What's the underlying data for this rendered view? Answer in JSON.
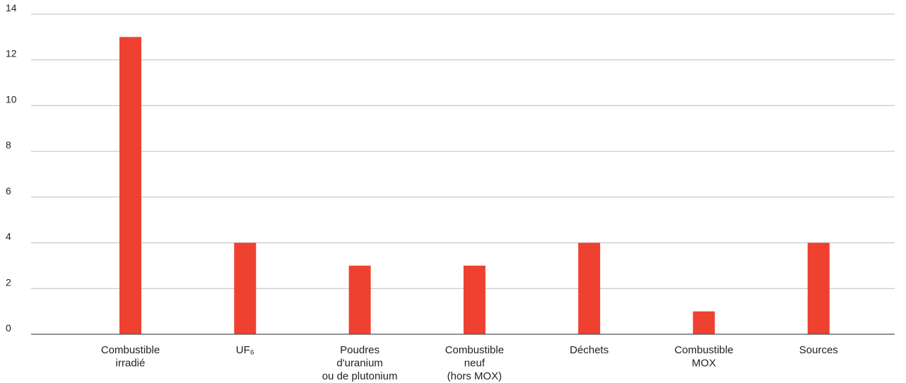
{
  "chart_data": {
    "type": "bar",
    "categories": [
      [
        "Combustible",
        "irradié"
      ],
      [
        "UF₆"
      ],
      [
        "Poudres",
        "d'uranium",
        "ou de plutonium"
      ],
      [
        "Combustible",
        "neuf",
        "(hors MOX)"
      ],
      [
        "Déchets"
      ],
      [
        "Combustible",
        "MOX"
      ],
      [
        "Sources"
      ]
    ],
    "values": [
      13,
      4,
      3,
      3,
      4,
      1,
      4
    ],
    "yticks": [
      "0",
      "2",
      "4",
      "6",
      "8",
      "10",
      "12",
      "14"
    ],
    "ylim": [
      0,
      14
    ],
    "grid": true,
    "colors": {
      "bar": "#ee4130",
      "grid": "#bdbdbd",
      "axis": "#555555"
    }
  }
}
